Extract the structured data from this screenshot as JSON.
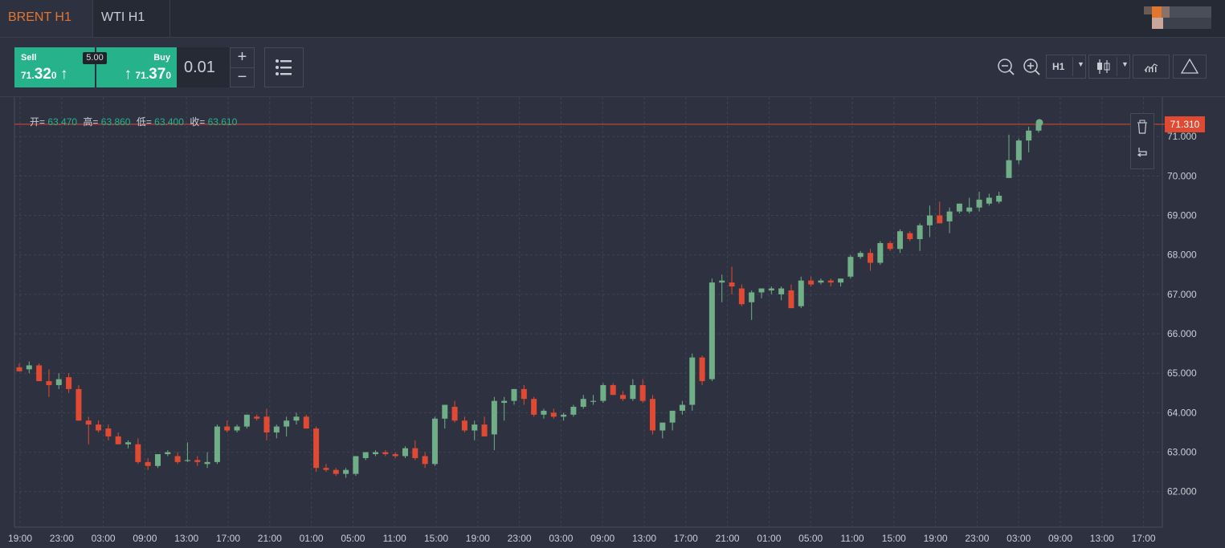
{
  "tabs": [
    {
      "label": "BRENT H1",
      "active": true
    },
    {
      "label": "WTI H1",
      "active": false
    }
  ],
  "trade": {
    "sell_label": "Sell",
    "buy_label": "Buy",
    "spread": "5.00",
    "sell_price": {
      "small": "71.",
      "big": "32",
      "sup": "0",
      "arrow": "↑"
    },
    "buy_price": {
      "small": "71.",
      "big": "37",
      "sup": "0",
      "arrow": "↑"
    },
    "quantity": "0.01",
    "plus": "+",
    "minus": "−"
  },
  "toolbar": {
    "timeframe": "H1"
  },
  "ohlc": {
    "open_label": "开=",
    "open": "63.470",
    "high_label": "高=",
    "high": "63.860",
    "low_label": "低=",
    "low": "63.400",
    "close_label": "收=",
    "close": "63.610"
  },
  "price_tag": "71.310",
  "colors": {
    "up": "#6fae87",
    "down": "#e04a33",
    "accent": "#e2762f",
    "buy_bg": "#26b28b"
  },
  "chart_data": {
    "type": "candlestick",
    "yticks": [
      "62.000",
      "63.000",
      "64.000",
      "65.000",
      "66.000",
      "67.000",
      "68.000",
      "69.000",
      "70.000",
      "71.000"
    ],
    "ylim": [
      61.1,
      72.0
    ],
    "xticks": [
      "19:00",
      "23:00",
      "03:00",
      "09:00",
      "13:00",
      "17:00",
      "21:00",
      "01:00",
      "05:00",
      "11:00",
      "15:00",
      "19:00",
      "23:00",
      "03:00",
      "09:00",
      "13:00",
      "17:00",
      "21:00",
      "01:00",
      "05:00",
      "11:00",
      "15:00",
      "19:00",
      "23:00",
      "03:00",
      "09:00",
      "13:00",
      "17:00"
    ],
    "current_price": 71.31,
    "candles": [
      [
        65.15,
        65.25,
        65.05,
        65.05
      ],
      [
        65.1,
        65.3,
        65.0,
        65.2
      ],
      [
        65.2,
        65.25,
        64.8,
        64.8
      ],
      [
        64.8,
        65.1,
        64.4,
        64.7
      ],
      [
        64.7,
        65.0,
        64.6,
        64.85
      ],
      [
        64.9,
        65.0,
        64.5,
        64.6
      ],
      [
        64.6,
        64.7,
        63.8,
        63.8
      ],
      [
        63.8,
        63.9,
        63.2,
        63.7
      ],
      [
        63.7,
        63.8,
        63.5,
        63.55
      ],
      [
        63.6,
        63.7,
        63.3,
        63.4
      ],
      [
        63.4,
        63.5,
        63.2,
        63.2
      ],
      [
        63.2,
        63.3,
        63.1,
        63.25
      ],
      [
        63.2,
        63.35,
        62.7,
        62.75
      ],
      [
        62.75,
        62.85,
        62.55,
        62.65
      ],
      [
        62.65,
        62.95,
        62.6,
        62.95
      ],
      [
        62.95,
        63.05,
        62.9,
        63.0
      ],
      [
        62.9,
        63.0,
        62.7,
        62.75
      ],
      [
        62.8,
        63.25,
        62.75,
        62.8
      ],
      [
        62.8,
        62.9,
        62.65,
        62.75
      ],
      [
        62.7,
        63.0,
        62.6,
        62.75
      ],
      [
        62.75,
        63.7,
        62.7,
        63.65
      ],
      [
        63.65,
        63.8,
        63.5,
        63.55
      ],
      [
        63.55,
        63.7,
        63.5,
        63.65
      ],
      [
        63.65,
        63.95,
        63.6,
        63.95
      ],
      [
        63.9,
        63.95,
        63.8,
        63.85
      ],
      [
        63.9,
        64.1,
        63.3,
        63.5
      ],
      [
        63.5,
        63.7,
        63.35,
        63.65
      ],
      [
        63.65,
        63.9,
        63.4,
        63.8
      ],
      [
        63.8,
        64.0,
        63.7,
        63.9
      ],
      [
        63.9,
        63.95,
        63.6,
        63.6
      ],
      [
        63.6,
        63.65,
        62.5,
        62.6
      ],
      [
        62.6,
        62.7,
        62.5,
        62.55
      ],
      [
        62.55,
        62.6,
        62.4,
        62.45
      ],
      [
        62.45,
        62.6,
        62.35,
        62.55
      ],
      [
        62.45,
        62.9,
        62.4,
        62.9
      ],
      [
        62.85,
        63.0,
        62.8,
        63.0
      ],
      [
        62.95,
        63.05,
        62.9,
        63.0
      ],
      [
        63.0,
        63.05,
        62.9,
        62.95
      ],
      [
        62.95,
        63.0,
        62.85,
        62.9
      ],
      [
        62.9,
        63.15,
        62.85,
        63.1
      ],
      [
        63.1,
        63.3,
        62.8,
        62.85
      ],
      [
        62.9,
        63.0,
        62.6,
        62.7
      ],
      [
        62.7,
        63.9,
        62.65,
        63.85
      ],
      [
        63.85,
        64.2,
        63.6,
        64.2
      ],
      [
        64.15,
        64.3,
        63.75,
        63.8
      ],
      [
        63.8,
        63.9,
        63.5,
        63.55
      ],
      [
        63.55,
        63.8,
        63.3,
        63.7
      ],
      [
        63.7,
        63.9,
        63.5,
        63.4
      ],
      [
        63.45,
        64.4,
        63.05,
        64.3
      ],
      [
        64.25,
        64.4,
        63.8,
        64.3
      ],
      [
        64.3,
        64.6,
        64.2,
        64.6
      ],
      [
        64.6,
        64.7,
        64.2,
        64.35
      ],
      [
        64.35,
        64.4,
        63.9,
        63.95
      ],
      [
        63.95,
        64.1,
        63.85,
        64.05
      ],
      [
        64.0,
        64.1,
        63.85,
        63.9
      ],
      [
        63.9,
        64.0,
        63.8,
        63.95
      ],
      [
        63.95,
        64.2,
        63.9,
        64.15
      ],
      [
        64.15,
        64.45,
        64.1,
        64.35
      ],
      [
        64.3,
        64.45,
        64.2,
        64.3
      ],
      [
        64.3,
        64.75,
        64.25,
        64.7
      ],
      [
        64.7,
        64.75,
        64.45,
        64.45
      ],
      [
        64.45,
        64.55,
        64.3,
        64.35
      ],
      [
        64.35,
        64.85,
        64.3,
        64.7
      ],
      [
        64.7,
        64.85,
        64.25,
        64.3
      ],
      [
        64.35,
        64.45,
        63.45,
        63.55
      ],
      [
        63.55,
        63.65,
        63.35,
        63.75
      ],
      [
        63.75,
        64.05,
        63.55,
        64.05
      ],
      [
        64.05,
        64.3,
        63.95,
        64.2
      ],
      [
        64.2,
        65.5,
        64.05,
        65.4
      ],
      [
        65.4,
        65.45,
        64.7,
        64.8
      ],
      [
        64.85,
        67.4,
        64.8,
        67.3
      ],
      [
        67.3,
        67.5,
        66.8,
        67.35
      ],
      [
        67.3,
        67.7,
        67.0,
        67.2
      ],
      [
        67.15,
        67.25,
        66.7,
        66.75
      ],
      [
        66.8,
        67.1,
        66.35,
        67.05
      ],
      [
        67.05,
        67.1,
        66.9,
        67.15
      ],
      [
        67.1,
        67.2,
        67.0,
        67.15
      ],
      [
        67.0,
        67.2,
        66.85,
        67.15
      ],
      [
        67.1,
        67.25,
        66.65,
        66.65
      ],
      [
        66.7,
        67.45,
        66.65,
        67.35
      ],
      [
        67.35,
        67.45,
        67.2,
        67.25
      ],
      [
        67.3,
        67.4,
        67.25,
        67.35
      ],
      [
        67.35,
        67.4,
        67.2,
        67.3
      ],
      [
        67.3,
        67.4,
        67.2,
        67.4
      ],
      [
        67.45,
        68.0,
        67.4,
        67.95
      ],
      [
        67.95,
        68.1,
        67.9,
        68.05
      ],
      [
        68.05,
        68.15,
        67.6,
        67.8
      ],
      [
        67.8,
        68.35,
        67.75,
        68.3
      ],
      [
        68.3,
        68.35,
        68.1,
        68.15
      ],
      [
        68.15,
        68.65,
        68.05,
        68.6
      ],
      [
        68.55,
        68.6,
        68.35,
        68.4
      ],
      [
        68.4,
        68.8,
        68.1,
        68.75
      ],
      [
        68.75,
        69.25,
        68.45,
        69.0
      ],
      [
        69.0,
        69.35,
        68.85,
        68.8
      ],
      [
        68.85,
        69.2,
        68.55,
        69.1
      ],
      [
        69.1,
        69.3,
        69.05,
        69.3
      ],
      [
        69.1,
        69.45,
        69.05,
        69.2
      ],
      [
        69.2,
        69.6,
        69.1,
        69.4
      ],
      [
        69.3,
        69.55,
        69.25,
        69.45
      ],
      [
        69.35,
        69.6,
        69.3,
        69.5
      ],
      [
        69.95,
        71.05,
        69.95,
        70.4
      ],
      [
        70.4,
        70.95,
        70.3,
        70.9
      ],
      [
        70.9,
        71.25,
        70.6,
        71.15
      ],
      [
        71.15,
        71.35,
        71.1,
        71.31
      ]
    ]
  }
}
